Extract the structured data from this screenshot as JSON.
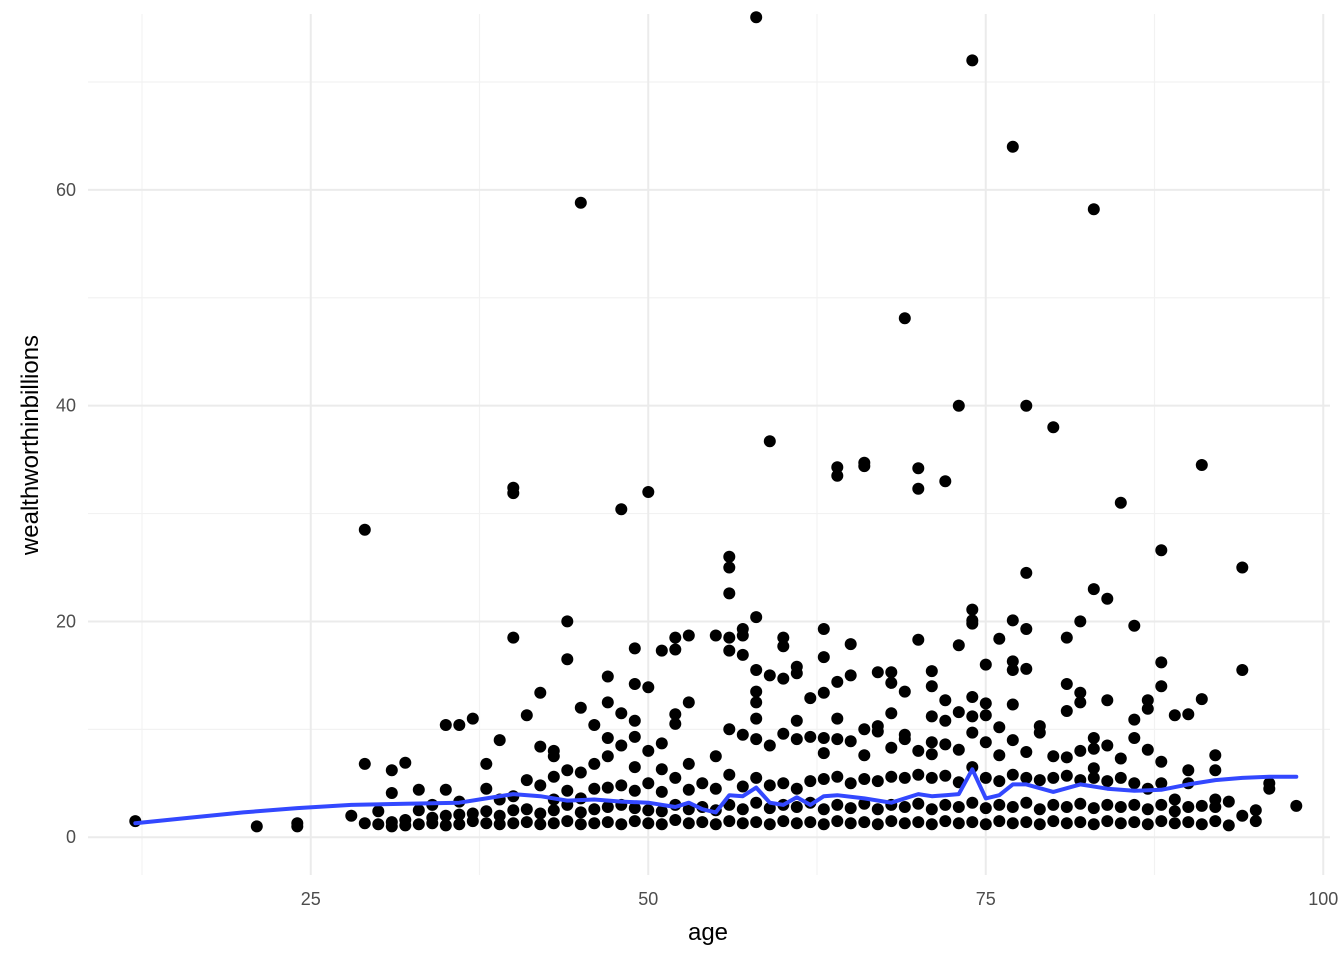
{
  "chart_data": {
    "type": "scatter",
    "title": "",
    "xlabel": "age",
    "ylabel": "wealthworthinbillions",
    "xlim": [
      8.5,
      100.5
    ],
    "ylim": [
      -3.5,
      76.3
    ],
    "x_ticks": [
      25,
      50,
      75,
      100
    ],
    "x_tick_labels": [
      "25",
      "50",
      "75",
      "100"
    ],
    "x_minor": [
      12.5,
      37.5,
      62.5,
      87.5
    ],
    "y_ticks": [
      0,
      20,
      40,
      60
    ],
    "y_tick_labels": [
      "0",
      "20",
      "40",
      "60"
    ],
    "y_minor": [
      10,
      30,
      50,
      70
    ],
    "grid": true,
    "legend": "none",
    "colors": {
      "points": "#000000",
      "smooth": "#3348FF",
      "grid": "#EBEBEB"
    },
    "points": [
      [
        12,
        1.5
      ],
      [
        21,
        1.0
      ],
      [
        24,
        1.0
      ],
      [
        24,
        1.3
      ],
      [
        28,
        2.0
      ],
      [
        29,
        1.3
      ],
      [
        29,
        6.8
      ],
      [
        29,
        28.5
      ],
      [
        30,
        1.2
      ],
      [
        30,
        2.4
      ],
      [
        31,
        1.0
      ],
      [
        31,
        1.4
      ],
      [
        31,
        4.1
      ],
      [
        31,
        6.2
      ],
      [
        32,
        1.1
      ],
      [
        32,
        1.6
      ],
      [
        32,
        6.9
      ],
      [
        33,
        1.2
      ],
      [
        33,
        2.5
      ],
      [
        33,
        4.4
      ],
      [
        34,
        1.3
      ],
      [
        34,
        1.8
      ],
      [
        34,
        3.0
      ],
      [
        35,
        1.1
      ],
      [
        35,
        2.0
      ],
      [
        35,
        4.4
      ],
      [
        35,
        10.4
      ],
      [
        36,
        1.2
      ],
      [
        36,
        2.1
      ],
      [
        36,
        3.3
      ],
      [
        36,
        10.4
      ],
      [
        37,
        1.5
      ],
      [
        37,
        2.2
      ],
      [
        37,
        11.0
      ],
      [
        38,
        1.3
      ],
      [
        38,
        2.4
      ],
      [
        38,
        4.5
      ],
      [
        38,
        6.8
      ],
      [
        39,
        1.2
      ],
      [
        39,
        2.0
      ],
      [
        39,
        3.5
      ],
      [
        39,
        9.0
      ],
      [
        40,
        1.3
      ],
      [
        40,
        2.5
      ],
      [
        40,
        3.8
      ],
      [
        40,
        18.5
      ],
      [
        40,
        31.9
      ],
      [
        40,
        32.4
      ],
      [
        41,
        1.4
      ],
      [
        41,
        2.6
      ],
      [
        41,
        5.3
      ],
      [
        41,
        11.3
      ],
      [
        42,
        1.2
      ],
      [
        42,
        2.2
      ],
      [
        42,
        4.8
      ],
      [
        42,
        8.4
      ],
      [
        42,
        13.4
      ],
      [
        43,
        1.3
      ],
      [
        43,
        2.5
      ],
      [
        43,
        3.5
      ],
      [
        43,
        5.6
      ],
      [
        43,
        7.5
      ],
      [
        43,
        8.0
      ],
      [
        44,
        1.5
      ],
      [
        44,
        3.0
      ],
      [
        44,
        4.3
      ],
      [
        44,
        6.2
      ],
      [
        44,
        16.5
      ],
      [
        44,
        20.0
      ],
      [
        45,
        1.2
      ],
      [
        45,
        2.3
      ],
      [
        45,
        3.6
      ],
      [
        45,
        6.0
      ],
      [
        45,
        12.0
      ],
      [
        45,
        58.8
      ],
      [
        46,
        1.3
      ],
      [
        46,
        2.6
      ],
      [
        46,
        4.5
      ],
      [
        46,
        6.8
      ],
      [
        46,
        10.4
      ],
      [
        47,
        1.4
      ],
      [
        47,
        2.8
      ],
      [
        47,
        4.6
      ],
      [
        47,
        7.5
      ],
      [
        47,
        9.2
      ],
      [
        47,
        12.5
      ],
      [
        47,
        14.9
      ],
      [
        48,
        1.2
      ],
      [
        48,
        3.0
      ],
      [
        48,
        4.8
      ],
      [
        48,
        8.5
      ],
      [
        48,
        11.5
      ],
      [
        48,
        30.4
      ],
      [
        49,
        1.5
      ],
      [
        49,
        2.7
      ],
      [
        49,
        4.3
      ],
      [
        49,
        6.5
      ],
      [
        49,
        9.3
      ],
      [
        49,
        10.8
      ],
      [
        49,
        14.2
      ],
      [
        49,
        17.5
      ],
      [
        50,
        1.3
      ],
      [
        50,
        2.5
      ],
      [
        50,
        5.0
      ],
      [
        50,
        8.0
      ],
      [
        50,
        13.9
      ],
      [
        50,
        32.0
      ],
      [
        51,
        1.2
      ],
      [
        51,
        2.4
      ],
      [
        51,
        4.2
      ],
      [
        51,
        6.3
      ],
      [
        51,
        8.7
      ],
      [
        51,
        17.3
      ],
      [
        52,
        1.6
      ],
      [
        52,
        3.0
      ],
      [
        52,
        5.5
      ],
      [
        52,
        10.5
      ],
      [
        52,
        11.4
      ],
      [
        52,
        17.4
      ],
      [
        52,
        18.5
      ],
      [
        53,
        1.3
      ],
      [
        53,
        2.6
      ],
      [
        53,
        4.4
      ],
      [
        53,
        6.8
      ],
      [
        53,
        12.5
      ],
      [
        53,
        18.7
      ],
      [
        54,
        1.4
      ],
      [
        54,
        2.8
      ],
      [
        54,
        5.0
      ],
      [
        55,
        1.2
      ],
      [
        55,
        2.5
      ],
      [
        55,
        4.5
      ],
      [
        55,
        7.5
      ],
      [
        55,
        18.7
      ],
      [
        56,
        1.5
      ],
      [
        56,
        3.0
      ],
      [
        56,
        5.8
      ],
      [
        56,
        10.0
      ],
      [
        56,
        17.3
      ],
      [
        56,
        18.5
      ],
      [
        56,
        22.6
      ],
      [
        56,
        25.0
      ],
      [
        56,
        26.0
      ],
      [
        57,
        1.3
      ],
      [
        57,
        2.6
      ],
      [
        57,
        4.7
      ],
      [
        57,
        9.5
      ],
      [
        57,
        16.9
      ],
      [
        57,
        18.7
      ],
      [
        57,
        19.3
      ],
      [
        58,
        1.4
      ],
      [
        58,
        3.2
      ],
      [
        58,
        5.5
      ],
      [
        58,
        9.1
      ],
      [
        58,
        11.0
      ],
      [
        58,
        12.5
      ],
      [
        58,
        13.5
      ],
      [
        58,
        15.5
      ],
      [
        58,
        20.4
      ],
      [
        58,
        76.0
      ],
      [
        59,
        1.2
      ],
      [
        59,
        2.7
      ],
      [
        59,
        4.8
      ],
      [
        59,
        8.5
      ],
      [
        59,
        15.0
      ],
      [
        59,
        36.7
      ],
      [
        60,
        1.5
      ],
      [
        60,
        3.0
      ],
      [
        60,
        5.0
      ],
      [
        60,
        9.6
      ],
      [
        60,
        14.7
      ],
      [
        60,
        17.7
      ],
      [
        60,
        18.5
      ],
      [
        61,
        1.3
      ],
      [
        61,
        2.8
      ],
      [
        61,
        4.5
      ],
      [
        61,
        9.1
      ],
      [
        61,
        10.8
      ],
      [
        61,
        15.2
      ],
      [
        61,
        15.8
      ],
      [
        62,
        1.4
      ],
      [
        62,
        3.2
      ],
      [
        62,
        5.2
      ],
      [
        62,
        9.3
      ],
      [
        62,
        12.9
      ],
      [
        63,
        1.2
      ],
      [
        63,
        2.6
      ],
      [
        63,
        5.4
      ],
      [
        63,
        7.8
      ],
      [
        63,
        9.2
      ],
      [
        63,
        13.4
      ],
      [
        63,
        16.7
      ],
      [
        63,
        19.3
      ],
      [
        64,
        1.5
      ],
      [
        64,
        3.0
      ],
      [
        64,
        5.6
      ],
      [
        64,
        9.1
      ],
      [
        64,
        11.0
      ],
      [
        64,
        14.4
      ],
      [
        64,
        33.5
      ],
      [
        64,
        34.3
      ],
      [
        65,
        1.3
      ],
      [
        65,
        2.7
      ],
      [
        65,
        5.0
      ],
      [
        65,
        8.9
      ],
      [
        65,
        15.0
      ],
      [
        65,
        17.9
      ],
      [
        66,
        1.4
      ],
      [
        66,
        3.1
      ],
      [
        66,
        5.4
      ],
      [
        66,
        7.6
      ],
      [
        66,
        10.0
      ],
      [
        66,
        34.4
      ],
      [
        66,
        34.7
      ],
      [
        67,
        1.2
      ],
      [
        67,
        2.6
      ],
      [
        67,
        5.2
      ],
      [
        67,
        9.8
      ],
      [
        67,
        10.3
      ],
      [
        67,
        15.3
      ],
      [
        68,
        1.5
      ],
      [
        68,
        3.0
      ],
      [
        68,
        5.6
      ],
      [
        68,
        8.3
      ],
      [
        68,
        11.5
      ],
      [
        68,
        14.3
      ],
      [
        68,
        15.3
      ],
      [
        69,
        1.3
      ],
      [
        69,
        2.8
      ],
      [
        69,
        5.5
      ],
      [
        69,
        9.1
      ],
      [
        69,
        9.5
      ],
      [
        69,
        13.5
      ],
      [
        69,
        48.1
      ],
      [
        70,
        1.4
      ],
      [
        70,
        3.1
      ],
      [
        70,
        5.8
      ],
      [
        70,
        8.0
      ],
      [
        70,
        18.3
      ],
      [
        70,
        32.3
      ],
      [
        70,
        34.2
      ],
      [
        71,
        1.2
      ],
      [
        71,
        2.6
      ],
      [
        71,
        5.5
      ],
      [
        71,
        7.7
      ],
      [
        71,
        8.8
      ],
      [
        71,
        11.2
      ],
      [
        71,
        14.0
      ],
      [
        71,
        15.4
      ],
      [
        72,
        1.5
      ],
      [
        72,
        3.0
      ],
      [
        72,
        5.7
      ],
      [
        72,
        8.6
      ],
      [
        72,
        10.8
      ],
      [
        72,
        12.7
      ],
      [
        72,
        33.0
      ],
      [
        73,
        1.3
      ],
      [
        73,
        2.8
      ],
      [
        73,
        5.1
      ],
      [
        73,
        8.1
      ],
      [
        73,
        11.6
      ],
      [
        73,
        17.8
      ],
      [
        73,
        40.0
      ],
      [
        74,
        1.4
      ],
      [
        74,
        3.2
      ],
      [
        74,
        6.5
      ],
      [
        74,
        9.7
      ],
      [
        74,
        11.2
      ],
      [
        74,
        13.0
      ],
      [
        74,
        19.8
      ],
      [
        74,
        20.1
      ],
      [
        74,
        21.1
      ],
      [
        74,
        72.0
      ],
      [
        75,
        1.2
      ],
      [
        75,
        2.7
      ],
      [
        75,
        5.5
      ],
      [
        75,
        8.8
      ],
      [
        75,
        11.3
      ],
      [
        75,
        12.4
      ],
      [
        75,
        16.0
      ],
      [
        76,
        1.5
      ],
      [
        76,
        3.0
      ],
      [
        76,
        5.2
      ],
      [
        76,
        7.6
      ],
      [
        76,
        10.2
      ],
      [
        76,
        18.4
      ],
      [
        77,
        1.3
      ],
      [
        77,
        2.8
      ],
      [
        77,
        5.8
      ],
      [
        77,
        9.0
      ],
      [
        77,
        12.3
      ],
      [
        77,
        15.5
      ],
      [
        77,
        16.3
      ],
      [
        77,
        20.1
      ],
      [
        77,
        64.0
      ],
      [
        78,
        1.4
      ],
      [
        78,
        3.2
      ],
      [
        78,
        5.5
      ],
      [
        78,
        7.9
      ],
      [
        78,
        15.6
      ],
      [
        78,
        19.3
      ],
      [
        78,
        24.5
      ],
      [
        78,
        40.0
      ],
      [
        79,
        1.2
      ],
      [
        79,
        2.6
      ],
      [
        79,
        5.3
      ],
      [
        79,
        9.7
      ],
      [
        79,
        10.3
      ],
      [
        80,
        1.5
      ],
      [
        80,
        3.0
      ],
      [
        80,
        5.5
      ],
      [
        80,
        7.5
      ],
      [
        80,
        38.0
      ],
      [
        81,
        1.3
      ],
      [
        81,
        2.8
      ],
      [
        81,
        5.7
      ],
      [
        81,
        7.4
      ],
      [
        81,
        11.7
      ],
      [
        81,
        14.2
      ],
      [
        81,
        18.5
      ],
      [
        82,
        1.4
      ],
      [
        82,
        3.1
      ],
      [
        82,
        5.3
      ],
      [
        82,
        8.0
      ],
      [
        82,
        12.5
      ],
      [
        82,
        13.4
      ],
      [
        82,
        20.0
      ],
      [
        83,
        1.2
      ],
      [
        83,
        2.7
      ],
      [
        83,
        5.5
      ],
      [
        83,
        6.4
      ],
      [
        83,
        8.2
      ],
      [
        83,
        9.2
      ],
      [
        83,
        23.0
      ],
      [
        83,
        58.2
      ],
      [
        84,
        1.5
      ],
      [
        84,
        3.0
      ],
      [
        84,
        5.2
      ],
      [
        84,
        8.5
      ],
      [
        84,
        12.7
      ],
      [
        84,
        22.1
      ],
      [
        85,
        1.3
      ],
      [
        85,
        2.8
      ],
      [
        85,
        5.5
      ],
      [
        85,
        7.3
      ],
      [
        85,
        31.0
      ],
      [
        86,
        1.4
      ],
      [
        86,
        3.0
      ],
      [
        86,
        5.0
      ],
      [
        86,
        9.2
      ],
      [
        86,
        10.9
      ],
      [
        86,
        19.6
      ],
      [
        87,
        1.2
      ],
      [
        87,
        2.6
      ],
      [
        87,
        4.5
      ],
      [
        87,
        8.1
      ],
      [
        87,
        12.7
      ],
      [
        87,
        11.9
      ],
      [
        88,
        1.5
      ],
      [
        88,
        3.0
      ],
      [
        88,
        5.0
      ],
      [
        88,
        7.0
      ],
      [
        88,
        14.0
      ],
      [
        88,
        16.2
      ],
      [
        88,
        26.6
      ],
      [
        89,
        1.3
      ],
      [
        89,
        2.4
      ],
      [
        89,
        3.5
      ],
      [
        89,
        11.3
      ],
      [
        90,
        1.4
      ],
      [
        90,
        2.8
      ],
      [
        90,
        5.0
      ],
      [
        90,
        6.2
      ],
      [
        90,
        11.4
      ],
      [
        91,
        1.2
      ],
      [
        91,
        2.9
      ],
      [
        91,
        12.8
      ],
      [
        91,
        34.5
      ],
      [
        92,
        1.5
      ],
      [
        92,
        2.8
      ],
      [
        92,
        3.5
      ],
      [
        92,
        6.2
      ],
      [
        92,
        7.6
      ],
      [
        93,
        1.1
      ],
      [
        93,
        3.3
      ],
      [
        94,
        2.0
      ],
      [
        94,
        15.5
      ],
      [
        94,
        25.0
      ],
      [
        95,
        1.5
      ],
      [
        95,
        2.5
      ],
      [
        96,
        4.5
      ],
      [
        96,
        5.0
      ],
      [
        98,
        2.9
      ]
    ],
    "smooth_x": [
      12,
      16,
      20,
      24,
      28,
      32,
      36,
      38,
      40,
      42,
      44,
      46,
      48,
      50,
      52,
      53,
      54,
      55,
      56,
      57,
      58,
      59,
      60,
      61,
      62,
      63,
      64,
      66,
      68,
      70,
      71,
      72,
      73,
      74,
      75,
      76,
      77,
      78,
      80,
      82,
      84,
      86,
      88,
      90,
      92,
      94,
      96,
      98
    ],
    "smooth_y": [
      1.3,
      1.8,
      2.3,
      2.7,
      3.0,
      3.1,
      3.2,
      3.6,
      4.0,
      3.8,
      3.4,
      3.5,
      3.3,
      3.2,
      2.8,
      3.2,
      2.6,
      2.3,
      3.9,
      3.8,
      4.6,
      3.2,
      3.0,
      3.7,
      3.0,
      3.8,
      3.9,
      3.6,
      3.2,
      4.0,
      3.8,
      3.9,
      4.0,
      6.3,
      3.6,
      3.9,
      4.9,
      4.9,
      4.2,
      4.9,
      4.5,
      4.3,
      4.4,
      4.9,
      5.3,
      5.5,
      5.6,
      5.6
    ]
  }
}
